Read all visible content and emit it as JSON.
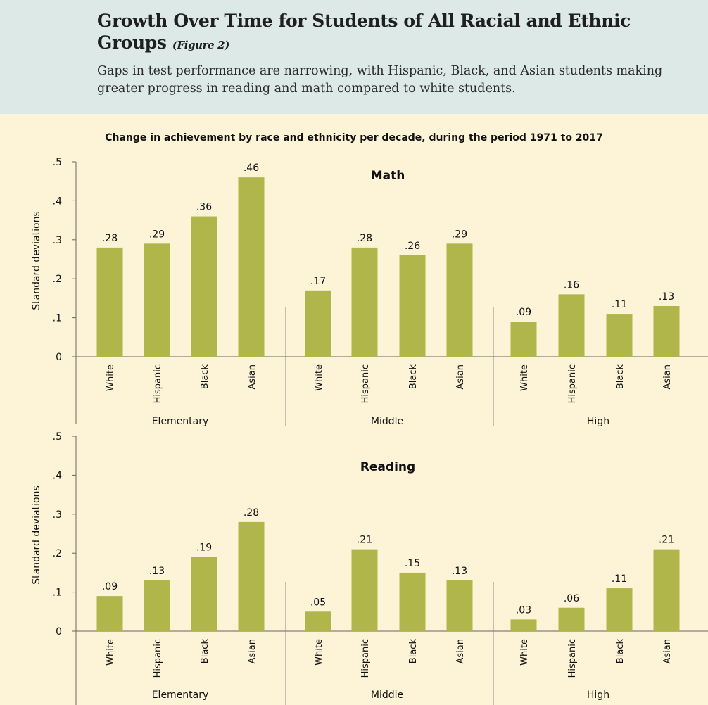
{
  "header": {
    "title": "Growth Over Time for Students of All Racial and Ethnic Groups",
    "figure_ref": "(Figure 2)",
    "subtitle": "Gaps in test performance are narrowing, with Hispanic, Black, and Asian students making greater progress in reading and math compared to white students."
  },
  "chart_title": "Change in achievement by race and ethnicity per decade, during the period 1971 to 2017",
  "colors": {
    "bar": "#b1b64a",
    "background": "#fdf3d6",
    "header_bg": "#dce9e7",
    "axis": "#666666"
  },
  "chart_data": [
    {
      "type": "bar",
      "title": "Math",
      "ylabel": "Standard deviations",
      "ylim": [
        0,
        0.5
      ],
      "yticks": [
        0,
        0.1,
        0.2,
        0.3,
        0.4,
        0.5
      ],
      "ytick_labels": [
        "0",
        ".1",
        ".2",
        ".3",
        ".4",
        ".5"
      ],
      "groups": [
        {
          "name": "Elementary",
          "categories": [
            "White",
            "Hispanic",
            "Black",
            "Asian"
          ],
          "values": [
            0.28,
            0.29,
            0.36,
            0.46
          ],
          "labels": [
            ".28",
            ".29",
            ".36",
            ".46"
          ]
        },
        {
          "name": "Middle",
          "categories": [
            "White",
            "Hispanic",
            "Black",
            "Asian"
          ],
          "values": [
            0.17,
            0.28,
            0.26,
            0.29
          ],
          "labels": [
            ".17",
            ".28",
            ".26",
            ".29"
          ]
        },
        {
          "name": "High",
          "categories": [
            "White",
            "Hispanic",
            "Black",
            "Asian"
          ],
          "values": [
            0.09,
            0.16,
            0.11,
            0.13
          ],
          "labels": [
            ".09",
            ".16",
            ".11",
            ".13"
          ]
        }
      ]
    },
    {
      "type": "bar",
      "title": "Reading",
      "ylabel": "Standard deviations",
      "ylim": [
        0,
        0.5
      ],
      "yticks": [
        0,
        0.1,
        0.2,
        0.3,
        0.4,
        0.5
      ],
      "ytick_labels": [
        "0",
        ".1",
        ".2",
        ".3",
        ".4",
        ".5"
      ],
      "groups": [
        {
          "name": "Elementary",
          "categories": [
            "White",
            "Hispanic",
            "Black",
            "Asian"
          ],
          "values": [
            0.09,
            0.13,
            0.19,
            0.28
          ],
          "labels": [
            ".09",
            ".13",
            ".19",
            ".28"
          ]
        },
        {
          "name": "Middle",
          "categories": [
            "White",
            "Hispanic",
            "Black",
            "Asian"
          ],
          "values": [
            0.05,
            0.21,
            0.15,
            0.13
          ],
          "labels": [
            ".05",
            ".21",
            ".15",
            ".13"
          ]
        },
        {
          "name": "High",
          "categories": [
            "White",
            "Hispanic",
            "Black",
            "Asian"
          ],
          "values": [
            0.03,
            0.06,
            0.11,
            0.21
          ],
          "labels": [
            ".03",
            ".06",
            ".11",
            ".21"
          ]
        }
      ]
    }
  ]
}
